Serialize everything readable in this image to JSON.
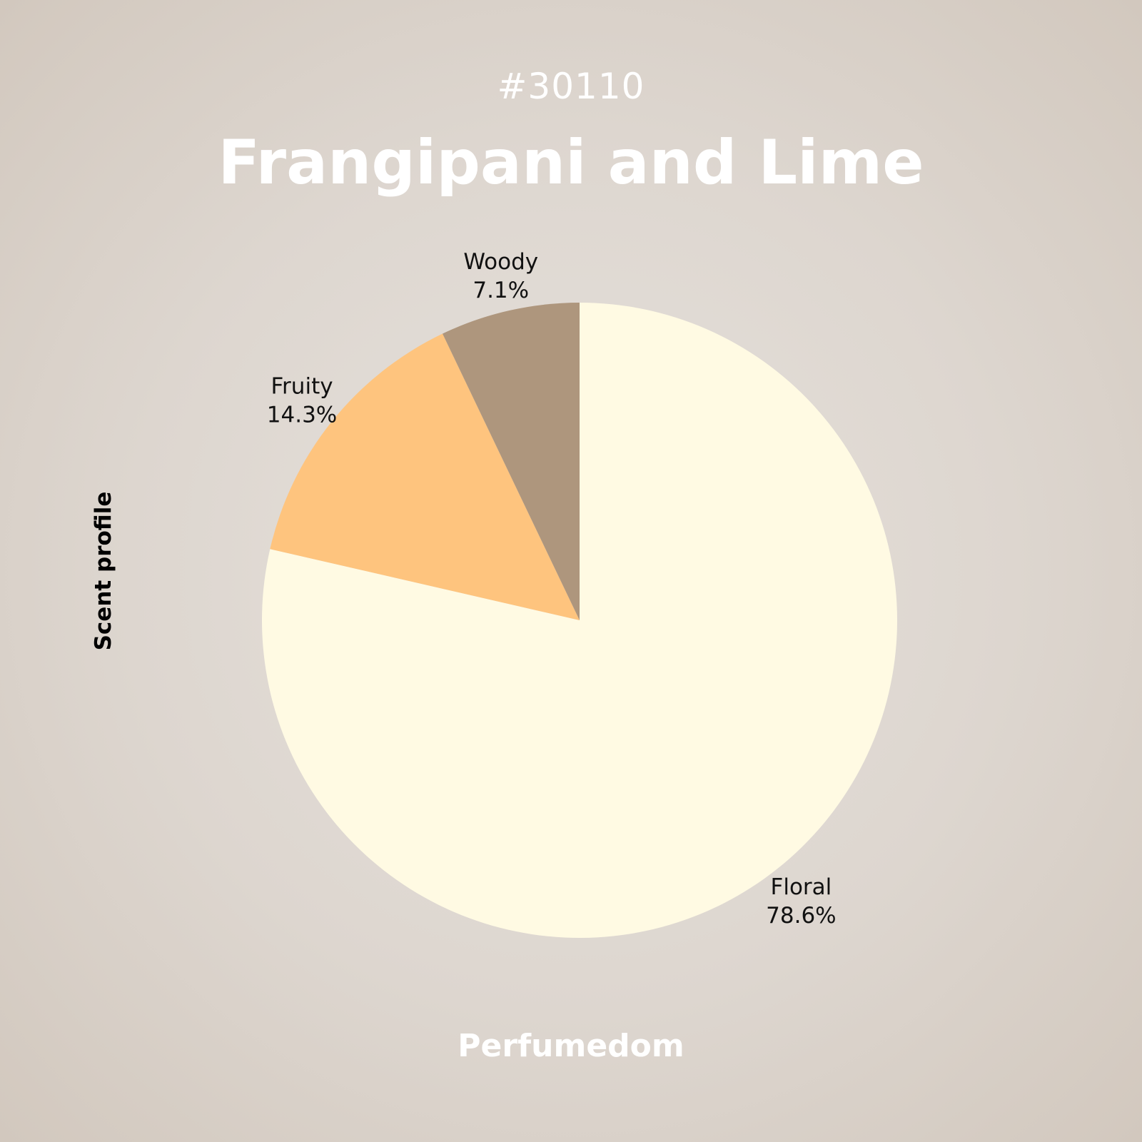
{
  "header": {
    "id": "#30110",
    "title": "Frangipani and Lime"
  },
  "footer": {
    "brand": "Perfumedom"
  },
  "chart_data": {
    "type": "pie",
    "title": "Frangipani and Lime",
    "ylabel": "Scent profile",
    "categories": [
      "Floral",
      "Fruity",
      "Woody"
    ],
    "values": [
      78.6,
      14.3,
      7.1
    ],
    "labels": [
      "78.6%",
      "14.3%",
      "7.1%"
    ],
    "colors": [
      "#fffae3",
      "#fec47e",
      "#ae967d"
    ],
    "start": "12 o'clock",
    "direction": "clockwise",
    "legend": "none"
  }
}
